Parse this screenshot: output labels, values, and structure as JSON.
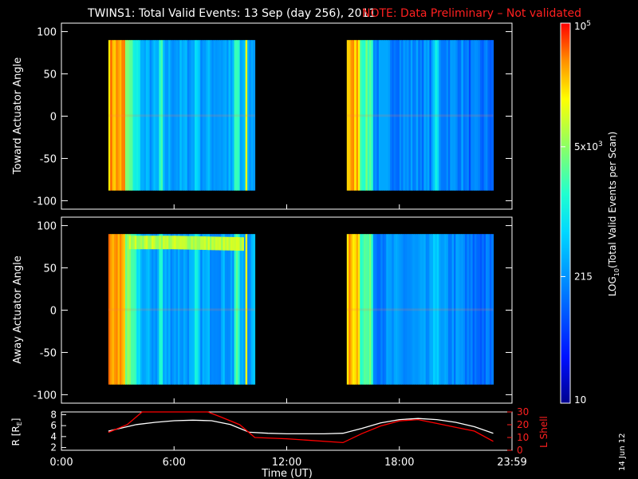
{
  "header": {
    "title": "TWINS1: Total Valid Events: 13 Sep (day 256), 2011",
    "note": "NOTE: Data Preliminary – Not validated"
  },
  "footer": {
    "date_stamp": "14 Jun 12"
  },
  "colors": {
    "background": "#000000",
    "text": "#ffffff",
    "note": "#ff2020",
    "lshell": "#ff0000",
    "radius": "#ffffff"
  },
  "chart_data": [
    {
      "type": "heatmap",
      "panel": "toward",
      "ylabel": "Toward Actuator Angle",
      "ylim": [
        -110,
        110
      ],
      "xlim": [
        0,
        24
      ],
      "yticks": [
        "100",
        "50",
        "0",
        "-50",
        "-100"
      ],
      "data_x_ranges_hours": [
        [
          2.5,
          10.3
        ],
        [
          15.2,
          23.0
        ]
      ],
      "data_y_range": [
        -88,
        90
      ]
    },
    {
      "type": "heatmap",
      "panel": "away",
      "ylabel": "Away Actuator Angle",
      "ylim": [
        -110,
        110
      ],
      "xlim": [
        0,
        24
      ],
      "yticks": [
        "100",
        "50",
        "0",
        "-50",
        "-100"
      ],
      "data_x_ranges_hours": [
        [
          2.5,
          10.3
        ],
        [
          15.2,
          23.0
        ]
      ],
      "data_y_range": [
        -88,
        90
      ]
    },
    {
      "type": "colorbar",
      "label": "LOG10(Total Valid Events per Scan)",
      "label_parts": {
        "prefix": "LOG",
        "sub": "10",
        "suffix": "(Total Valid Events per Scan)"
      },
      "range": [
        10,
        100000
      ],
      "ticks": [
        {
          "value": 100000,
          "base": "10",
          "sup": "5"
        },
        {
          "value": 5000,
          "base": "5x10",
          "sup": "3"
        },
        {
          "value": 215,
          "base": "215",
          "sup": ""
        },
        {
          "value": 10,
          "base": "10",
          "sup": ""
        }
      ]
    },
    {
      "type": "line",
      "panel": "orbit",
      "xlabel": "Time (UT)",
      "xticks": [
        "0:00",
        "6:00",
        "12:00",
        "18:00",
        "23:59"
      ],
      "xtick_values": [
        0,
        6,
        12,
        18,
        24
      ],
      "left_axis": {
        "label": "R [R",
        "label_sub": "E",
        "label_end": "]",
        "ylim": [
          1.5,
          8.5
        ],
        "ticks": [
          "8",
          "6",
          "4",
          "2"
        ],
        "tick_values": [
          8,
          6,
          4,
          2
        ]
      },
      "right_axis": {
        "label": "L Shell",
        "ylim": [
          0,
          30
        ],
        "ticks": [
          "30",
          "20",
          "10",
          "0"
        ],
        "tick_values": [
          30,
          20,
          10,
          0
        ]
      },
      "series": [
        {
          "name": "R",
          "axis": "left",
          "x": [
            2.5,
            4,
            5,
            6,
            7,
            8,
            9,
            10,
            11,
            12,
            13,
            14,
            15,
            16,
            17,
            18,
            19,
            20,
            21,
            22,
            23
          ],
          "y": [
            5.0,
            6.2,
            6.6,
            6.9,
            7.0,
            6.9,
            6.2,
            4.8,
            4.6,
            4.5,
            4.5,
            4.5,
            4.6,
            5.5,
            6.5,
            7.1,
            7.3,
            7.1,
            6.6,
            5.8,
            4.6
          ]
        },
        {
          "name": "L Shell",
          "axis": "right",
          "x": [
            2.5,
            3.5,
            4.3,
            7.8,
            8.5,
            9.5,
            10.3,
            12,
            15,
            16,
            17,
            18,
            19,
            20,
            21,
            22,
            23
          ],
          "y": [
            14,
            20,
            30,
            30,
            26,
            20,
            10,
            9,
            6,
            13,
            19,
            23,
            24,
            21,
            18,
            15,
            7
          ]
        }
      ]
    }
  ]
}
